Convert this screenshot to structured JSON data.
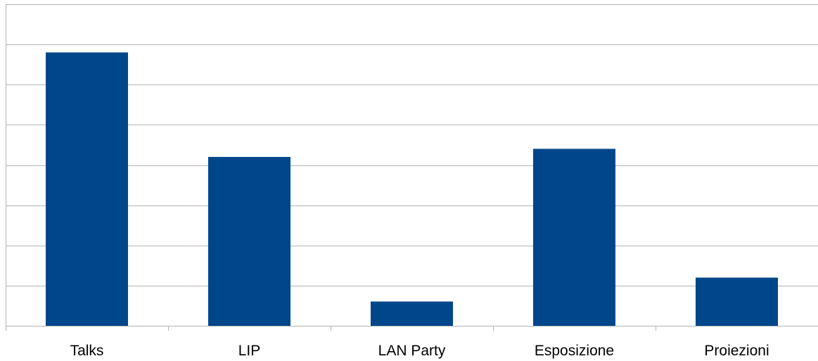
{
  "chart_data": {
    "type": "bar",
    "title": "",
    "xlabel": "",
    "ylabel": "",
    "categories": [
      "Talks",
      "LIP",
      "LAN Party",
      "Esposizione",
      "Proiezioni"
    ],
    "values": [
      6.8,
      4.2,
      0.6,
      4.4,
      1.2
    ],
    "ylim": [
      0,
      8
    ],
    "ytick_step": 1,
    "y_tick_labels_visible": false,
    "grid": true,
    "legend": "none",
    "bar_color": "#00468b",
    "grid_color": "#b3b3b3"
  }
}
